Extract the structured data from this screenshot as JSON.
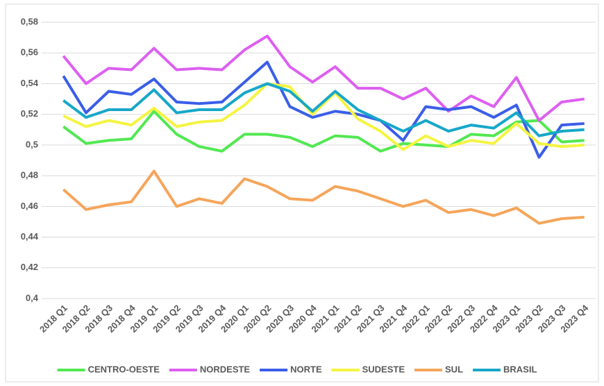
{
  "chart_data": {
    "type": "line",
    "categories": [
      "2018 Q1",
      "2018 Q2",
      "2018 Q3",
      "2018 Q4",
      "2019 Q1",
      "2019 Q2",
      "2019 Q3",
      "2019 Q4",
      "2020 Q1",
      "2020 Q2",
      "2020 Q3",
      "2020 Q4",
      "2021 Q1",
      "2021 Q2",
      "2021 Q3",
      "2021 Q4",
      "2022 Q1",
      "2022 Q2",
      "2022 Q3",
      "2022 Q4",
      "2023 Q1",
      "2023 Q2",
      "2023 Q3",
      "2023 Q4"
    ],
    "series": [
      {
        "name": "CENTRO-OESTE",
        "color": "#52e852",
        "values": [
          0.512,
          0.501,
          0.503,
          0.504,
          0.522,
          0.507,
          0.499,
          0.496,
          0.507,
          0.507,
          0.505,
          0.499,
          0.506,
          0.505,
          0.496,
          0.501,
          0.5,
          0.499,
          0.507,
          0.506,
          0.515,
          0.516,
          0.502,
          0.503
        ]
      },
      {
        "name": "NORDESTE",
        "color": "#dd5ff0",
        "values": [
          0.558,
          0.54,
          0.55,
          0.549,
          0.563,
          0.549,
          0.55,
          0.549,
          0.562,
          0.571,
          0.551,
          0.541,
          0.551,
          0.537,
          0.537,
          0.53,
          0.537,
          0.522,
          0.532,
          0.525,
          0.544,
          0.516,
          0.528,
          0.53
        ]
      },
      {
        "name": "NORTE",
        "color": "#3a5ee8",
        "values": [
          0.545,
          0.521,
          0.535,
          0.533,
          0.543,
          0.528,
          0.527,
          0.528,
          0.541,
          0.554,
          0.525,
          0.518,
          0.522,
          0.52,
          0.516,
          0.503,
          0.525,
          0.523,
          0.525,
          0.518,
          0.526,
          0.492,
          0.513,
          0.514
        ]
      },
      {
        "name": "SUDESTE",
        "color": "#f4f442",
        "values": [
          0.519,
          0.512,
          0.516,
          0.513,
          0.524,
          0.512,
          0.515,
          0.516,
          0.526,
          0.54,
          0.538,
          0.52,
          0.534,
          0.517,
          0.509,
          0.497,
          0.506,
          0.499,
          0.503,
          0.501,
          0.514,
          0.501,
          0.499,
          0.5
        ]
      },
      {
        "name": "SUL",
        "color": "#f5a55a",
        "values": [
          0.471,
          0.458,
          0.461,
          0.463,
          0.483,
          0.46,
          0.465,
          0.462,
          0.478,
          0.473,
          0.465,
          0.464,
          0.473,
          0.47,
          0.465,
          0.46,
          0.464,
          0.456,
          0.458,
          0.454,
          0.459,
          0.449,
          0.452,
          0.453
        ]
      },
      {
        "name": "BRASIL",
        "color": "#17a7c9",
        "values": [
          0.529,
          0.518,
          0.523,
          0.523,
          0.536,
          0.521,
          0.523,
          0.523,
          0.534,
          0.54,
          0.535,
          0.522,
          0.535,
          0.523,
          0.516,
          0.509,
          0.516,
          0.509,
          0.513,
          0.511,
          0.521,
          0.506,
          0.509,
          0.51
        ]
      }
    ],
    "ylim": [
      0.4,
      0.58
    ],
    "yticks": [
      {
        "value": 0.4,
        "label": "0,4"
      },
      {
        "value": 0.42,
        "label": "0,42"
      },
      {
        "value": 0.44,
        "label": "0,44"
      },
      {
        "value": 0.46,
        "label": "0,46"
      },
      {
        "value": 0.48,
        "label": "0,48"
      },
      {
        "value": 0.5,
        "label": "0,5"
      },
      {
        "value": 0.52,
        "label": "0,52"
      },
      {
        "value": 0.54,
        "label": "0,54"
      },
      {
        "value": 0.56,
        "label": "0,56"
      },
      {
        "value": 0.58,
        "label": "0,58"
      }
    ],
    "grid": true,
    "legend": "bottom"
  }
}
